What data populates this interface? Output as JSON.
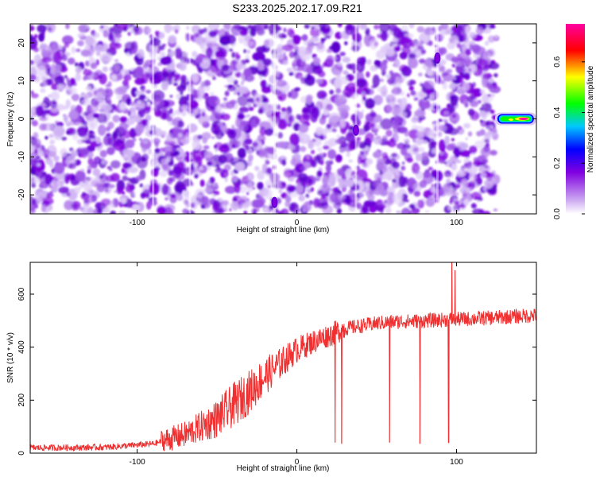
{
  "title": "S233.2025.202.17.09.R21",
  "chart_data": [
    {
      "type": "heatmap",
      "xlabel": "Height of straight line (km)",
      "ylabel": "Frequency (Hz)",
      "xlim": [
        -167,
        150
      ],
      "ylim": [
        -25,
        25
      ],
      "xticks": [
        -100,
        0,
        100
      ],
      "yticks": [
        -20,
        -10,
        0,
        10,
        20
      ],
      "colorbar": {
        "label": "Normalized spectral amplitude",
        "range": [
          0.0,
          0.75
        ],
        "ticks": [
          0.0,
          0.2,
          0.4,
          0.6
        ],
        "colors": [
          "#ffffff",
          "#c8a0f0",
          "#8000e0",
          "#0000ff",
          "#00c8ff",
          "#00ff00",
          "#ffff00",
          "#ff0000",
          "#ff00a0"
        ]
      },
      "data_extent_x": [
        -167,
        125
      ],
      "features": [
        {
          "x": 137,
          "y": 0,
          "value": 0.75,
          "note": "strong signal band"
        },
        {
          "x": 88,
          "y": 16,
          "value": 0.25
        },
        {
          "x": 37,
          "y": -3,
          "value": 0.25
        },
        {
          "x": -14,
          "y": -22,
          "value": 0.25
        }
      ]
    },
    {
      "type": "line",
      "xlabel": "Height of straight line (km)",
      "ylabel": "SNR (10 * v/v)",
      "xlim": [
        -167,
        150
      ],
      "ylim": [
        0,
        720
      ],
      "xticks": [
        -100,
        0,
        100
      ],
      "yticks": [
        0,
        200,
        400,
        600
      ],
      "color": "#f03030",
      "trend": {
        "x": [
          -167,
          -120,
          -90,
          -70,
          -50,
          -40,
          -30,
          -20,
          -10,
          0,
          10,
          20,
          30,
          40,
          50,
          60,
          80,
          100,
          120,
          150
        ],
        "y": [
          20,
          22,
          35,
          70,
          130,
          180,
          230,
          290,
          340,
          390,
          420,
          445,
          470,
          480,
          490,
          495,
          500,
          505,
          510,
          520
        ]
      },
      "dips": [
        {
          "x": 24,
          "y": 40
        },
        {
          "x": 28,
          "y": 35
        },
        {
          "x": 58,
          "y": 40
        },
        {
          "x": 77,
          "y": 35
        },
        {
          "x": 95,
          "y": 40
        }
      ],
      "spikes": [
        {
          "x": 97,
          "y": 720
        },
        {
          "x": 99,
          "y": 690
        }
      ]
    }
  ]
}
